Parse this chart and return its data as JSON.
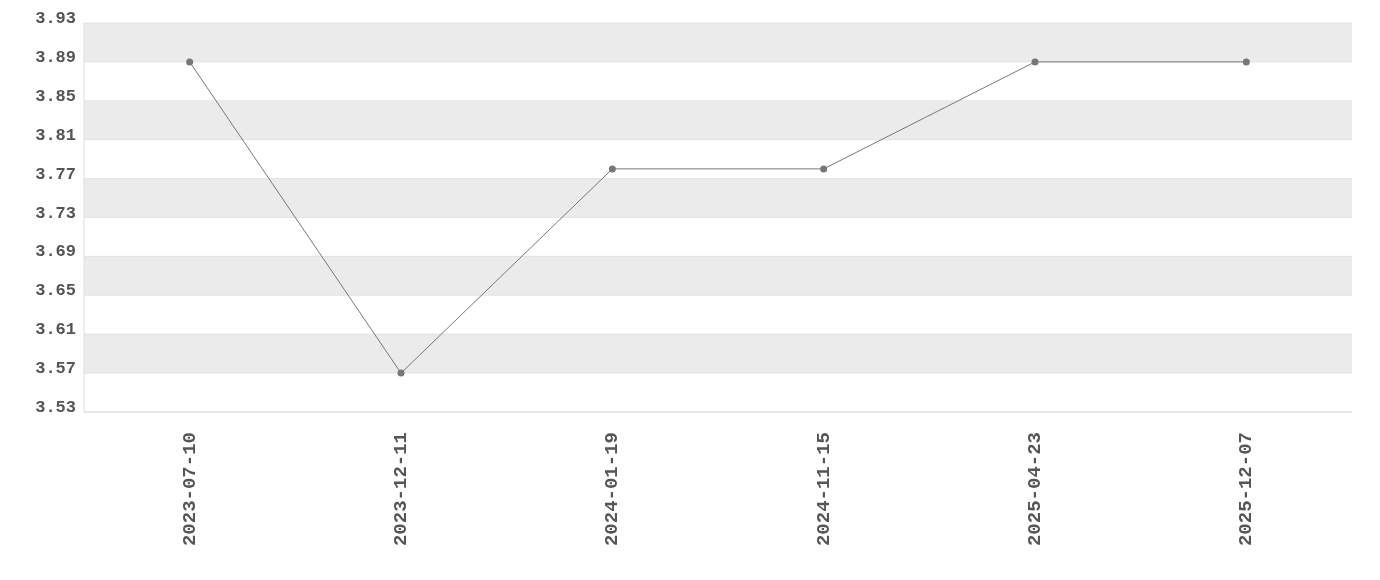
{
  "chart_data": {
    "type": "line",
    "categories": [
      "2023-07-10",
      "2023-12-11",
      "2024-01-19",
      "2024-11-15",
      "2025-04-23",
      "2025-12-07"
    ],
    "series": [
      {
        "color": "#777777",
        "values": [
          3.89,
          3.57,
          3.78,
          3.78,
          3.89,
          3.89
        ]
      }
    ],
    "ylim": [
      3.53,
      3.93
    ],
    "yticks": [
      3.53,
      3.57,
      3.61,
      3.65,
      3.69,
      3.73,
      3.77,
      3.81,
      3.85,
      3.89,
      3.93
    ],
    "grid": "y",
    "marker": "circle",
    "line_style": "solid"
  }
}
